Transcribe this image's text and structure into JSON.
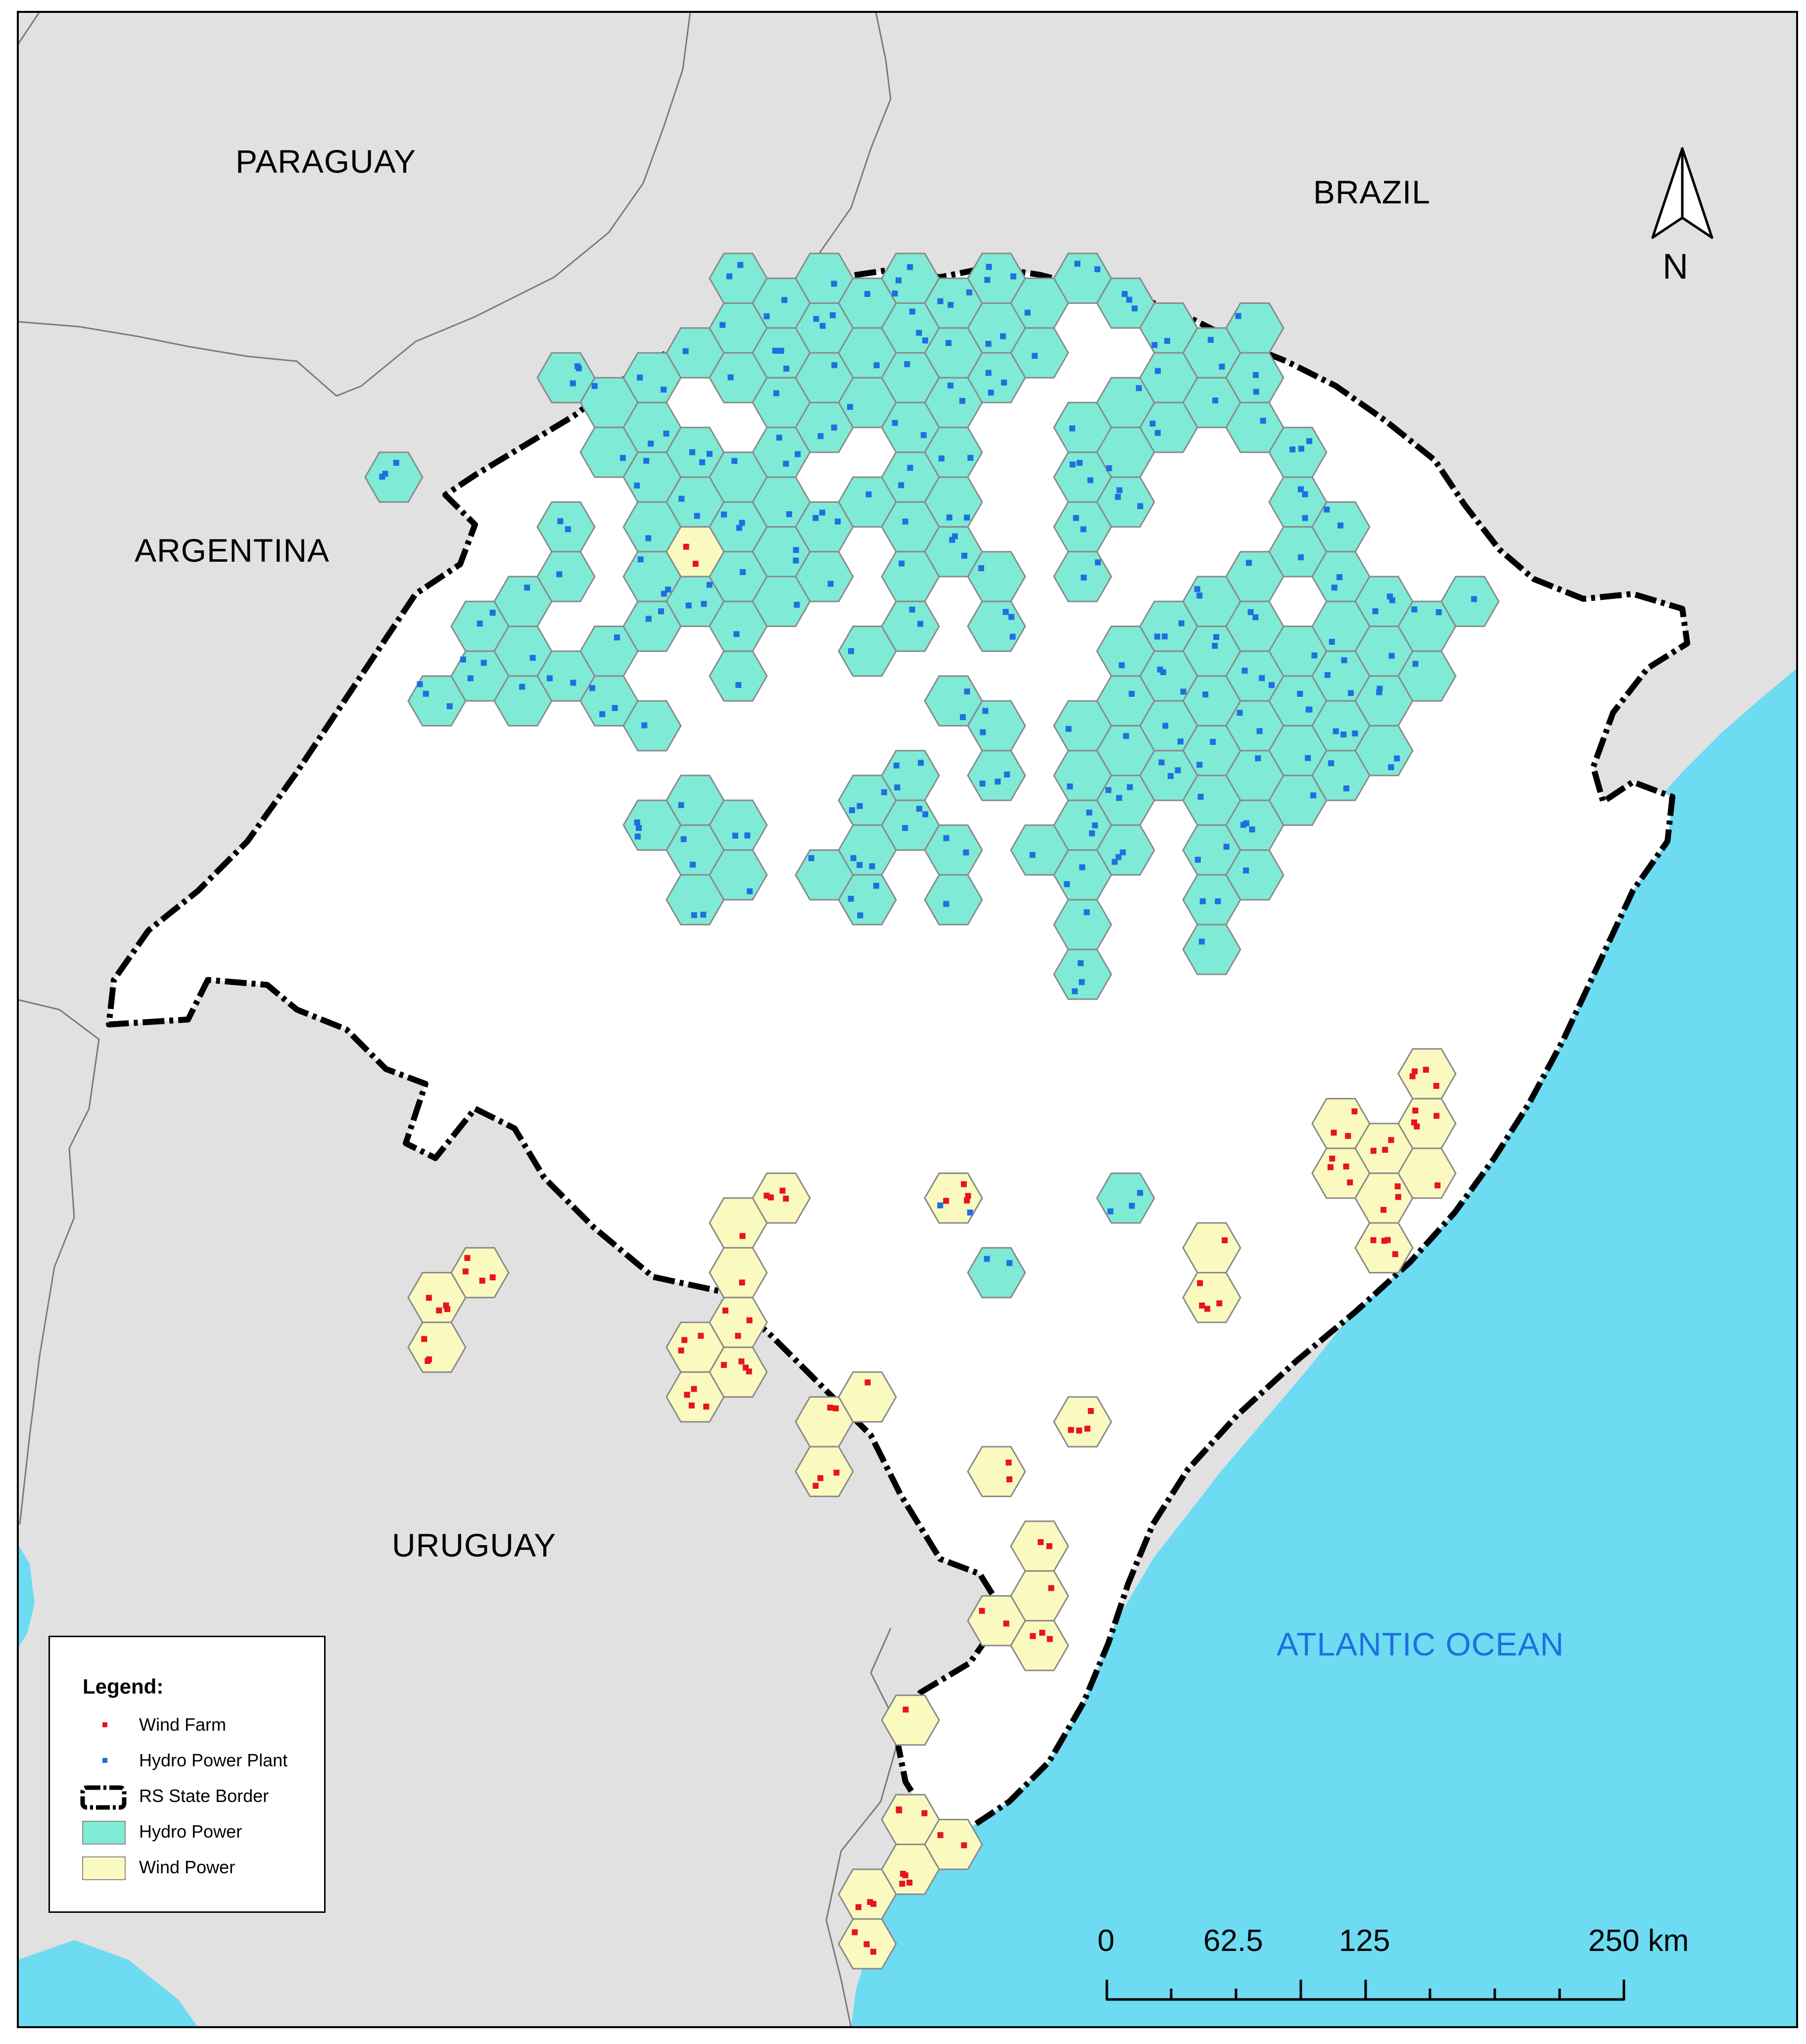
{
  "map": {
    "countries": [
      "PARAGUAY",
      "BRAZIL",
      "ARGENTINA",
      "URUGUAY"
    ],
    "ocean": "ATLANTIC OCEAN",
    "north_label": "N"
  },
  "legend": {
    "title": "Legend:",
    "items": [
      {
        "label": "Wind Farm",
        "symbol": "red-square",
        "color": "#e8141c"
      },
      {
        "label": "Hydro Power Plant",
        "symbol": "blue-square",
        "color": "#1f6fe0"
      },
      {
        "label": "RS State Border",
        "symbol": "dash-dot-border",
        "color": "#000000"
      },
      {
        "label": "Hydro Power",
        "symbol": "fill",
        "color": "#7fead6"
      },
      {
        "label": "Wind Power",
        "symbol": "fill",
        "color": "#fafac0"
      }
    ]
  },
  "scale": {
    "labels": [
      "0",
      "62.5",
      "125",
      "250 km"
    ]
  },
  "colors": {
    "land_other": "#e1e1e1",
    "ocean": "#6ddbf2",
    "state": "#ffffff",
    "hydro_fill": "#7fead6",
    "wind_fill": "#fafac0",
    "hex_stroke": "#8a8a8a",
    "wind_farm": "#e8141c",
    "hydro_plant": "#1f6fe0"
  }
}
